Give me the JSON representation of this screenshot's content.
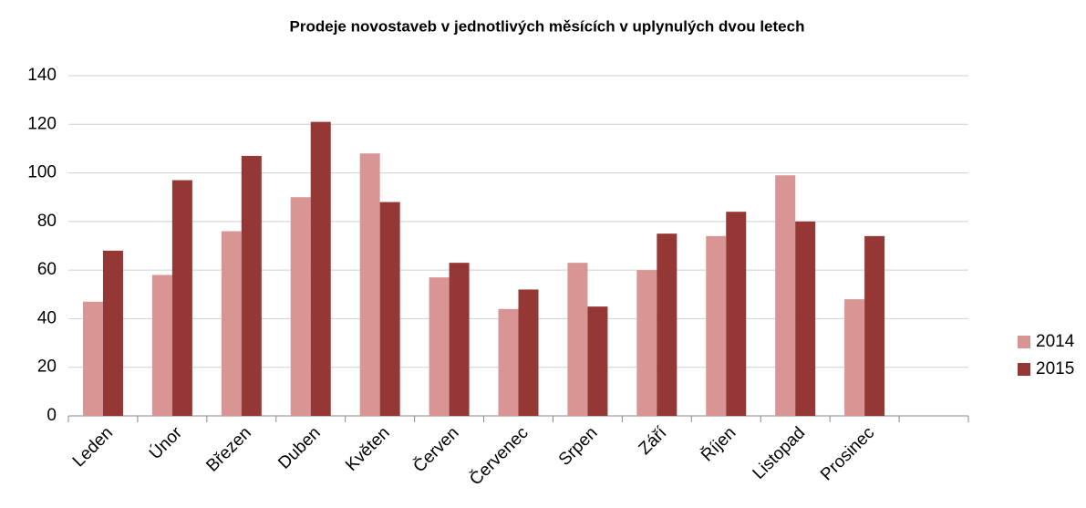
{
  "chart_data": {
    "type": "bar",
    "title": "Prodeje novostaveb v jednotlivých měsících v uplynulých dvou letech",
    "categories": [
      "Leden",
      "Únor",
      "Březen",
      "Duben",
      "Květen",
      "Červen",
      "Červenec",
      "Srpen",
      "Září",
      "Říjen",
      "Listopad",
      "Prosinec",
      null
    ],
    "series": [
      {
        "name": "2014",
        "color": "#d99594",
        "values": [
          47,
          58,
          76,
          90,
          108,
          57,
          44,
          63,
          60,
          74,
          99,
          48,
          null
        ]
      },
      {
        "name": "2015",
        "color": "#953735",
        "values": [
          68,
          97,
          107,
          121,
          88,
          63,
          52,
          45,
          75,
          84,
          80,
          74,
          null
        ]
      }
    ],
    "ylim": [
      0,
      140
    ],
    "yticks": [
      0,
      20,
      40,
      60,
      80,
      100,
      120,
      140
    ],
    "grid": true,
    "legend": "right"
  }
}
